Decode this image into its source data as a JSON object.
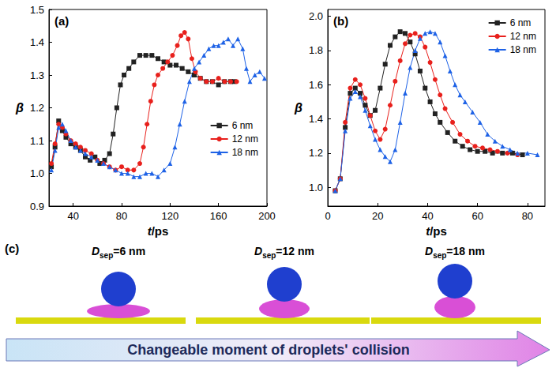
{
  "chart_data": [
    {
      "type": "line",
      "letter": "(a)",
      "x_label": "t/ps",
      "y_label": "β",
      "xlim": [
        20,
        200
      ],
      "xticks": [
        40,
        80,
        120,
        160,
        200
      ],
      "ylim": [
        0.9,
        1.5
      ],
      "yticks": [
        0.9,
        {
          "value": 1,
          "label": "1.0"
        },
        1.1,
        1.2,
        1.3,
        1.4,
        1.5
      ],
      "grid": false,
      "legend": "right",
      "series": [
        {
          "name": "6 nm",
          "color": "#222222",
          "marker": "square",
          "line_style": "solid",
          "x": [
            22,
            25,
            28,
            31,
            34,
            38,
            42,
            46,
            50,
            54,
            58,
            62,
            66,
            70,
            73,
            76,
            79,
            82,
            86,
            90,
            95,
            100,
            105,
            110,
            115,
            120,
            125,
            130,
            135,
            140,
            145,
            150,
            155,
            160,
            165,
            170,
            173
          ],
          "values": [
            1.02,
            1.08,
            1.16,
            1.13,
            1.11,
            1.09,
            1.08,
            1.07,
            1.05,
            1.04,
            1.05,
            1.03,
            1.04,
            1.06,
            1.12,
            1.2,
            1.27,
            1.3,
            1.32,
            1.34,
            1.36,
            1.36,
            1.36,
            1.35,
            1.34,
            1.33,
            1.33,
            1.32,
            1.31,
            1.3,
            1.29,
            1.28,
            1.28,
            1.27,
            1.28,
            1.28,
            1.28
          ]
        },
        {
          "name": "12 nm",
          "color": "#e8201c",
          "marker": "circle",
          "line_style": "solid",
          "x": [
            22,
            25,
            28,
            31,
            34,
            38,
            42,
            46,
            50,
            55,
            60,
            65,
            70,
            75,
            80,
            85,
            90,
            95,
            98,
            101,
            104,
            107,
            110,
            114,
            118,
            122,
            126,
            129,
            132,
            135,
            138,
            141,
            145,
            150,
            155,
            160,
            165,
            170,
            175
          ],
          "values": [
            1.03,
            1.09,
            1.15,
            1.14,
            1.12,
            1.1,
            1.09,
            1.08,
            1.07,
            1.06,
            1.04,
            1.03,
            1.02,
            1.01,
            1.02,
            1.01,
            1.01,
            1.03,
            1.08,
            1.15,
            1.22,
            1.27,
            1.3,
            1.32,
            1.34,
            1.36,
            1.39,
            1.42,
            1.43,
            1.41,
            1.35,
            1.31,
            1.29,
            1.28,
            1.28,
            1.29,
            1.28,
            1.28,
            1.28
          ]
        },
        {
          "name": "18 nm",
          "color": "#1e62e6",
          "marker": "triangle",
          "line_style": "solid",
          "x": [
            22,
            25,
            28,
            31,
            34,
            38,
            42,
            46,
            50,
            55,
            60,
            65,
            70,
            75,
            80,
            85,
            90,
            95,
            100,
            105,
            110,
            115,
            120,
            124,
            128,
            132,
            136,
            140,
            144,
            148,
            152,
            156,
            160,
            164,
            168,
            172,
            176,
            180,
            183,
            186,
            190,
            194,
            198
          ],
          "values": [
            1.01,
            1.07,
            1.14,
            1.15,
            1.13,
            1.1,
            1.08,
            1.07,
            1.06,
            1.05,
            1.04,
            1.03,
            1.02,
            1.01,
            1.0,
            1.0,
            0.99,
            0.99,
            1.0,
            1.0,
            0.99,
            1.01,
            1.03,
            1.08,
            1.15,
            1.22,
            1.28,
            1.32,
            1.34,
            1.36,
            1.38,
            1.39,
            1.39,
            1.4,
            1.41,
            1.39,
            1.41,
            1.38,
            1.32,
            1.28,
            1.3,
            1.31,
            1.29
          ]
        }
      ]
    },
    {
      "type": "line",
      "letter": "(b)",
      "x_label": "t/ps",
      "y_label": "β",
      "xlim": [
        0,
        87
      ],
      "xticks": [
        0,
        20,
        40,
        60,
        80
      ],
      "ylim": [
        0.89,
        2.04
      ],
      "yticks": [
        {
          "value": 1,
          "label": "1.0"
        },
        1.2,
        1.4,
        1.6,
        1.8,
        {
          "value": 2,
          "label": "2.0"
        }
      ],
      "grid": false,
      "legend": "upper right",
      "series": [
        {
          "name": "6 nm",
          "color": "#222222",
          "marker": "square",
          "line_style": "solid",
          "x": [
            3,
            5,
            7,
            9,
            11,
            13,
            15,
            17,
            19,
            21,
            23,
            25,
            27,
            29,
            31,
            33,
            35,
            37,
            39,
            41,
            43,
            45,
            48,
            51,
            54,
            57,
            60,
            63,
            66,
            70,
            74,
            78
          ],
          "values": [
            0.98,
            1.05,
            1.35,
            1.55,
            1.58,
            1.55,
            1.48,
            1.42,
            1.45,
            1.58,
            1.72,
            1.83,
            1.88,
            1.91,
            1.9,
            1.85,
            1.78,
            1.68,
            1.58,
            1.5,
            1.43,
            1.38,
            1.32,
            1.27,
            1.24,
            1.22,
            1.21,
            1.21,
            1.2,
            1.2,
            1.2,
            1.19
          ]
        },
        {
          "name": "12 nm",
          "color": "#e8201c",
          "marker": "circle",
          "line_style": "solid",
          "x": [
            3,
            5,
            7,
            9,
            11,
            13,
            15,
            17,
            19,
            21,
            23,
            25,
            27,
            29,
            31,
            33,
            35,
            37,
            39,
            41,
            43,
            45,
            47,
            50,
            53,
            56,
            59,
            62,
            65,
            68,
            72,
            76
          ],
          "values": [
            0.98,
            1.05,
            1.38,
            1.58,
            1.63,
            1.6,
            1.52,
            1.42,
            1.33,
            1.28,
            1.34,
            1.48,
            1.62,
            1.74,
            1.84,
            1.89,
            1.9,
            1.88,
            1.82,
            1.73,
            1.63,
            1.54,
            1.46,
            1.38,
            1.31,
            1.27,
            1.24,
            1.23,
            1.22,
            1.21,
            1.2,
            1.19
          ]
        },
        {
          "name": "18 nm",
          "color": "#1e62e6",
          "marker": "triangle",
          "line_style": "solid",
          "x": [
            3,
            5,
            7,
            9,
            11,
            13,
            15,
            17,
            19,
            21,
            23,
            25,
            27,
            29,
            31,
            33,
            35,
            37,
            39,
            41,
            43,
            45,
            47,
            49,
            51,
            53,
            55,
            58,
            61,
            64,
            67,
            70,
            73,
            76,
            80,
            84
          ],
          "values": [
            0.98,
            1.05,
            1.33,
            1.52,
            1.56,
            1.53,
            1.45,
            1.36,
            1.28,
            1.22,
            1.18,
            1.15,
            1.22,
            1.38,
            1.55,
            1.7,
            1.8,
            1.87,
            1.9,
            1.91,
            1.9,
            1.85,
            1.77,
            1.68,
            1.6,
            1.54,
            1.5,
            1.44,
            1.38,
            1.31,
            1.27,
            1.24,
            1.22,
            1.2,
            1.2,
            1.19
          ]
        }
      ]
    }
  ],
  "panel_c": {
    "letter": "(c)",
    "cases": [
      {
        "symbol": "D",
        "subscript": "sep",
        "text": "=6 nm"
      },
      {
        "symbol": "D",
        "subscript": "sep",
        "text": "=12 nm"
      },
      {
        "symbol": "D",
        "subscript": "sep",
        "text": "=18 nm"
      }
    ],
    "arrow_text": "Changeable moment of droplets' collision"
  }
}
